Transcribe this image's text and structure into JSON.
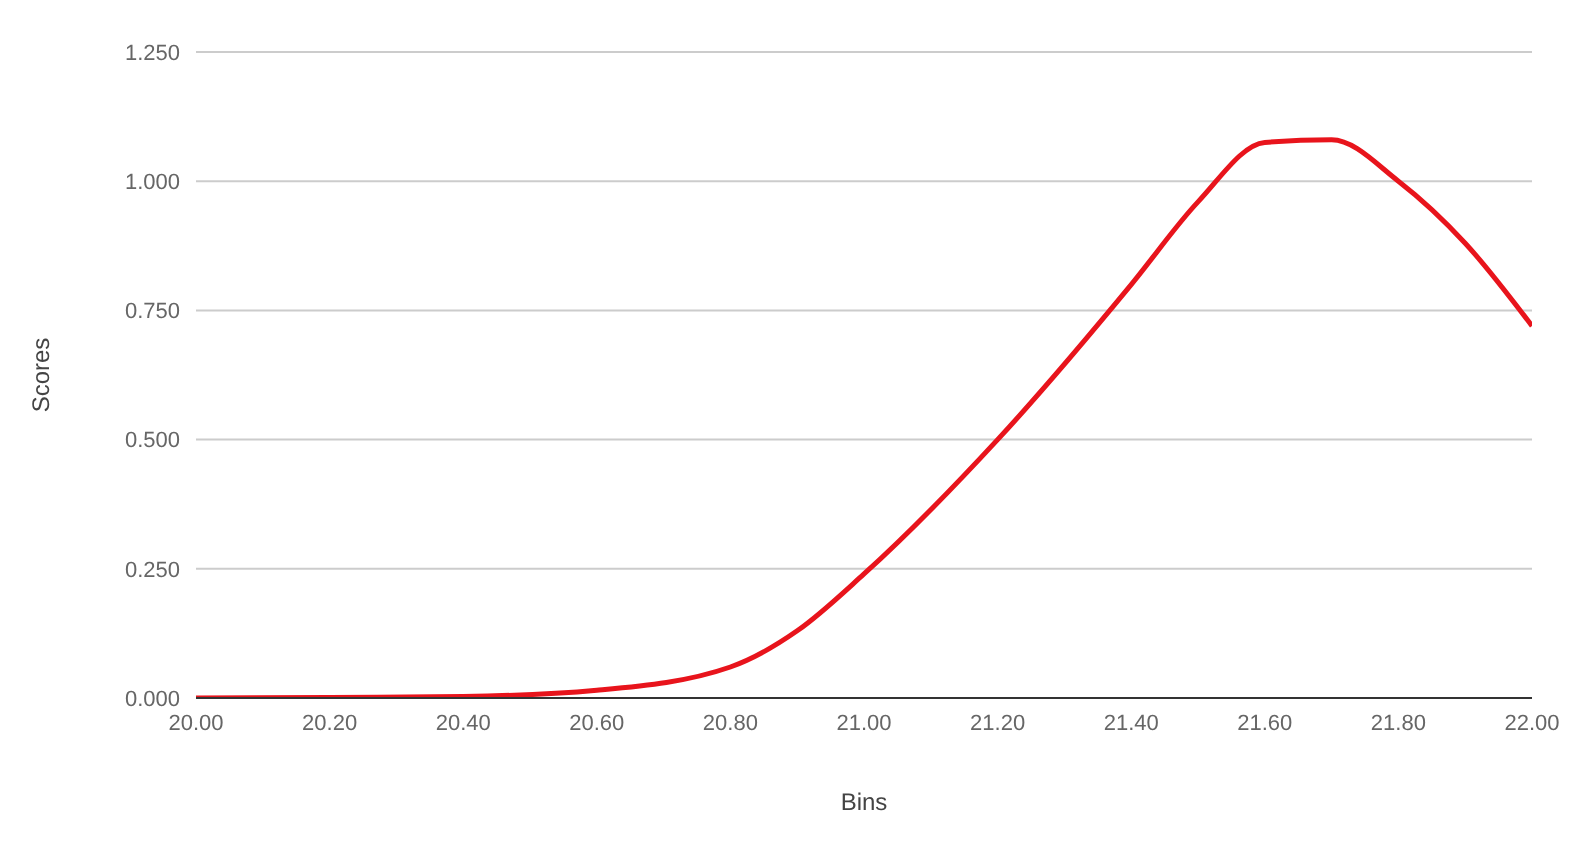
{
  "chart_data": {
    "type": "line",
    "xlabel": "Bins",
    "ylabel": "Scores",
    "x": [
      20.0,
      20.2,
      20.4,
      20.6,
      20.8,
      20.9,
      21.0,
      21.2,
      21.4,
      21.5,
      21.6,
      21.7,
      21.8,
      21.9,
      22.0
    ],
    "series": [
      {
        "color": "#e8141c",
        "values": [
          0,
          0.001,
          0.003,
          0.015,
          0.06,
          0.13,
          0.24,
          0.5,
          0.8,
          0.96,
          1.075,
          1.08,
          1.0,
          0.88,
          0.72
        ]
      }
    ],
    "xlim": [
      20.0,
      22.0
    ],
    "xticks": [
      {
        "value": 20.0,
        "label": "20.00"
      },
      {
        "value": 20.2,
        "label": "20.20"
      },
      {
        "value": 20.4,
        "label": "20.40"
      },
      {
        "value": 20.6,
        "label": "20.60"
      },
      {
        "value": 20.8,
        "label": "20.80"
      },
      {
        "value": 21.0,
        "label": "21.00"
      },
      {
        "value": 21.2,
        "label": "21.20"
      },
      {
        "value": 21.4,
        "label": "21.40"
      },
      {
        "value": 21.6,
        "label": "21.60"
      },
      {
        "value": 21.8,
        "label": "21.80"
      },
      {
        "value": 22.0,
        "label": "22.00"
      }
    ],
    "ylim": [
      0,
      1.25
    ],
    "yticks": [
      {
        "value": 0,
        "label": "0.000"
      },
      {
        "value": 0.25,
        "label": "0.250"
      },
      {
        "value": 0.5,
        "label": "0.500"
      },
      {
        "value": 0.75,
        "label": "0.750"
      },
      {
        "value": 1.0,
        "label": "1.000"
      },
      {
        "value": 1.25,
        "label": "1.250"
      }
    ],
    "grid": "y",
    "marker": "none",
    "line_style": "solid",
    "legend": false
  }
}
